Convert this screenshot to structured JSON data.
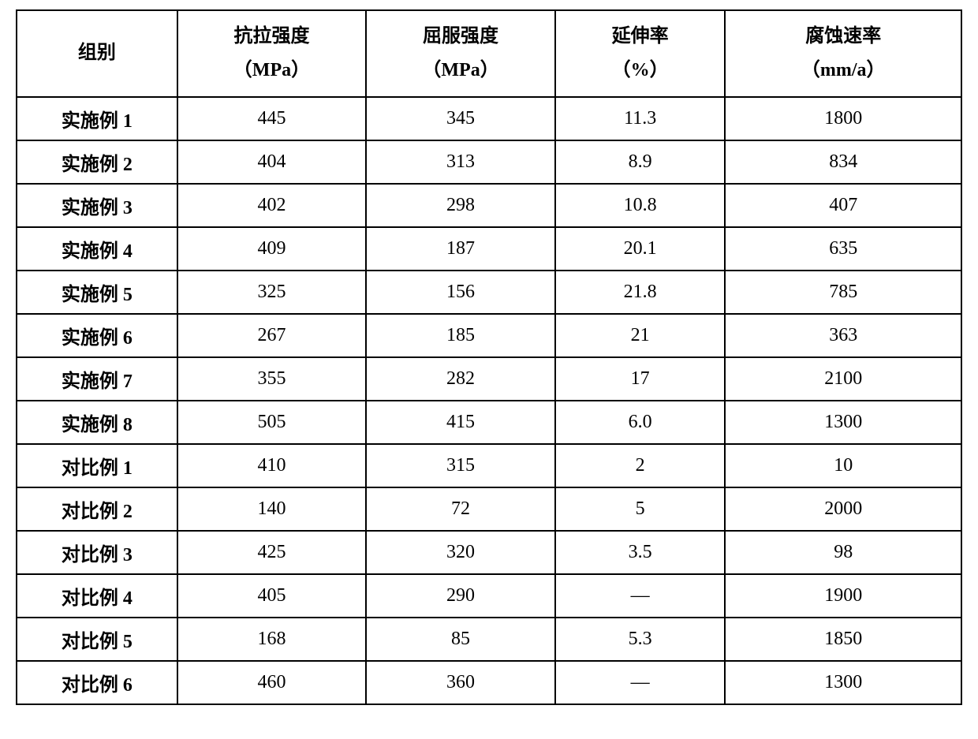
{
  "table": {
    "columns": [
      {
        "line1": "组别",
        "line2": ""
      },
      {
        "line1": "抗拉强度",
        "line2": "（MPa）"
      },
      {
        "line1": "屈服强度",
        "line2": "（MPa）"
      },
      {
        "line1": "延伸率",
        "line2": "（%）"
      },
      {
        "line1": "腐蚀速率",
        "line2": "（mm/a）"
      }
    ],
    "rows": [
      {
        "label": "实施例 1",
        "tensile": "445",
        "yield": "345",
        "elongation": "11.3",
        "corrosion": "1800"
      },
      {
        "label": "实施例 2",
        "tensile": "404",
        "yield": "313",
        "elongation": "8.9",
        "corrosion": "834"
      },
      {
        "label": "实施例 3",
        "tensile": "402",
        "yield": "298",
        "elongation": "10.8",
        "corrosion": "407"
      },
      {
        "label": "实施例 4",
        "tensile": "409",
        "yield": "187",
        "elongation": "20.1",
        "corrosion": "635"
      },
      {
        "label": "实施例 5",
        "tensile": "325",
        "yield": "156",
        "elongation": "21.8",
        "corrosion": "785"
      },
      {
        "label": "实施例 6",
        "tensile": "267",
        "yield": "185",
        "elongation": "21",
        "corrosion": "363"
      },
      {
        "label": "实施例 7",
        "tensile": "355",
        "yield": "282",
        "elongation": "17",
        "corrosion": "2100"
      },
      {
        "label": "实施例 8",
        "tensile": "505",
        "yield": "415",
        "elongation": "6.0",
        "corrosion": "1300"
      },
      {
        "label": "对比例 1",
        "tensile": "410",
        "yield": "315",
        "elongation": "2",
        "corrosion": "10"
      },
      {
        "label": "对比例 2",
        "tensile": "140",
        "yield": "72",
        "elongation": "5",
        "corrosion": "2000"
      },
      {
        "label": "对比例 3",
        "tensile": "425",
        "yield": "320",
        "elongation": "3.5",
        "corrosion": "98"
      },
      {
        "label": "对比例 4",
        "tensile": "405",
        "yield": "290",
        "elongation": "—",
        "corrosion": "1900"
      },
      {
        "label": "对比例 5",
        "tensile": "168",
        "yield": "85",
        "elongation": "5.3",
        "corrosion": "1850"
      },
      {
        "label": "对比例 6",
        "tensile": "460",
        "yield": "360",
        "elongation": "—",
        "corrosion": "1300"
      }
    ],
    "styling": {
      "border_color": "#000000",
      "border_width": 2,
      "background_color": "#ffffff",
      "header_font_weight": "bold",
      "header_fontsize": 24,
      "cell_fontsize": 24,
      "text_align": "center",
      "font_family": "SimSun",
      "first_col_bold": true,
      "column_widths_pct": [
        17,
        20,
        20,
        18,
        25
      ],
      "header_row_height": 110,
      "data_row_height": 55
    }
  }
}
